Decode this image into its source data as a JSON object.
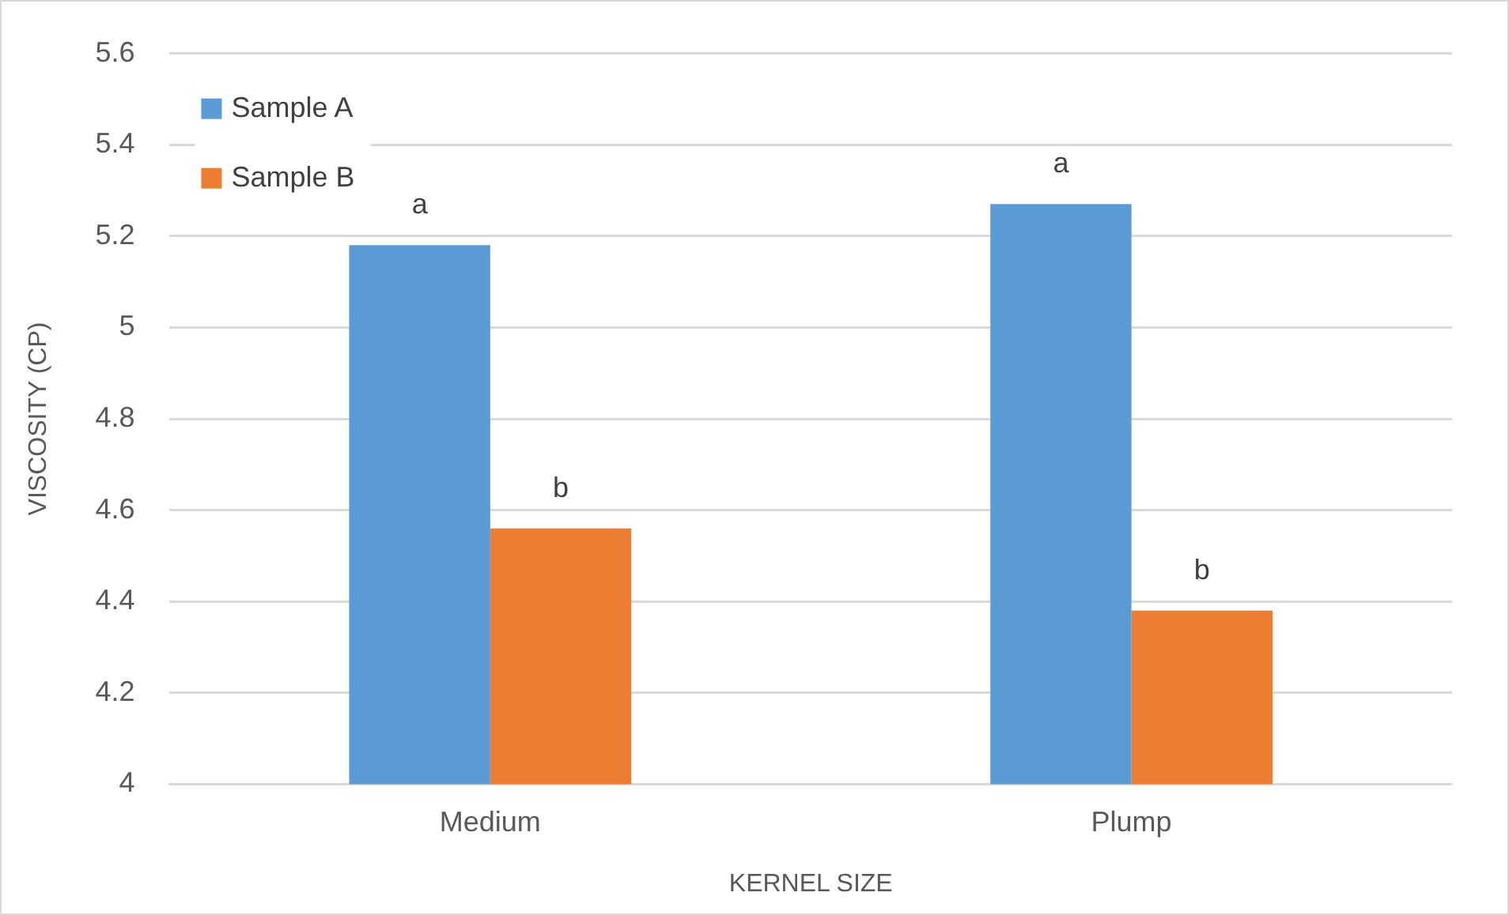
{
  "chart_data": {
    "type": "bar",
    "xlabel": "KERNEL SIZE",
    "ylabel": "VISCOSITY (CP)",
    "categories": [
      "Medium",
      "Plump"
    ],
    "series": [
      {
        "name": "Sample A",
        "color": "#5b9bd5",
        "values": [
          5.18,
          5.27
        ]
      },
      {
        "name": "Sample B",
        "color": "#ed7d31",
        "values": [
          4.56,
          4.38
        ]
      }
    ],
    "ylim": [
      4,
      5.6
    ],
    "yticks": [
      4,
      4.2,
      4.4,
      4.6,
      4.8,
      5,
      5.2,
      5.4,
      5.6
    ],
    "grid": "y",
    "legend": "top left",
    "annotations": [
      {
        "text": "a",
        "x": "Medium",
        "y": 5.18
      },
      {
        "text": "b",
        "x": "Medium",
        "y": 4.56
      },
      {
        "text": "a",
        "x": "Plump",
        "y": 5.27
      },
      {
        "text": "b",
        "x": "Plump",
        "y": 4.38
      }
    ]
  }
}
